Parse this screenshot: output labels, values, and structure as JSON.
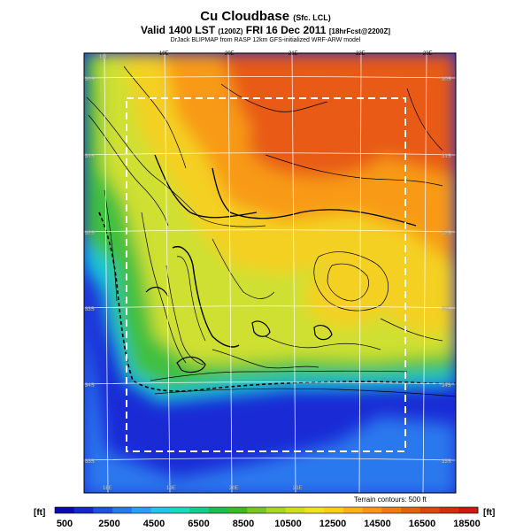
{
  "header": {
    "title_main": "Cu Cloudbase",
    "title_sub": "(Sfc. LCL)",
    "valid_main": "Valid 1400 LST",
    "valid_code": "(1200Z)",
    "valid_date": "FRI 16 Dec 2011",
    "valid_fcst": "[18hrFcst@2200Z]",
    "credit": "DrJack BLIPMAP from RASP 12km GFS-initialized WRF-ARW model"
  },
  "map": {
    "lon_labels_top": [
      "18E",
      "19E",
      "20E",
      "21E",
      "22E",
      "23E"
    ],
    "lon_labels_bottom": [
      "18E",
      "19E",
      "20E",
      "21E"
    ],
    "lat_labels_left": [
      "30S",
      "31S",
      "32S",
      "33S",
      "34S",
      "35S"
    ],
    "lat_labels_right": [
      "30S",
      "31S",
      "32S",
      "33S",
      "34S",
      "35S"
    ],
    "terrain_note": "Terrain contours: 500 ft",
    "colors": {
      "sea_deep": "#1a2bd6",
      "sea": "#2a78ee",
      "coast": "#18c8d8",
      "low": "#3fc040",
      "mid": "#cfe030",
      "high": "#f4d020",
      "higher": "#f89a18",
      "top": "#e85a12"
    }
  },
  "colorbar": {
    "unit_left": "[ft]",
    "unit_right": "[ft]",
    "labels": [
      "500",
      "2500",
      "4500",
      "6500",
      "8500",
      "10500",
      "12500",
      "14500",
      "16500",
      "18500"
    ],
    "colors": [
      "#0a0ab4",
      "#1428d2",
      "#1e50e6",
      "#2878f0",
      "#2aa0f4",
      "#20c8e8",
      "#14dcc0",
      "#10d090",
      "#18c050",
      "#40b828",
      "#78c820",
      "#a8d81c",
      "#d0e018",
      "#f0e418",
      "#f8d010",
      "#f8b410",
      "#f89810",
      "#f07c10",
      "#e86010",
      "#e04410",
      "#d82c10",
      "#d01810"
    ]
  }
}
